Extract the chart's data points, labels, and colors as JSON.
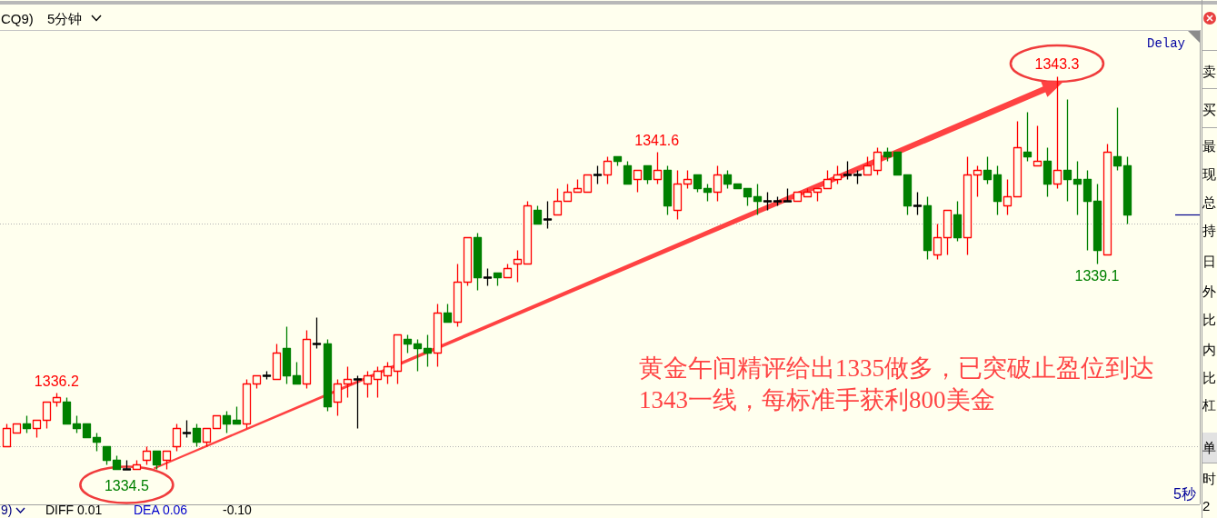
{
  "chart_data": [
    {
      "type": "candlestick",
      "title": "CQ9)",
      "subtitle": "5分钟",
      "categories": [
        null,
        null,
        null,
        null,
        null,
        null,
        null,
        null,
        null,
        null,
        null,
        null,
        null,
        null,
        null,
        null,
        null,
        null,
        null,
        null,
        null,
        null,
        null,
        null,
        null,
        null,
        null,
        null,
        null,
        null,
        null,
        null,
        null,
        null,
        null,
        null,
        null,
        null,
        null,
        null,
        null,
        null,
        null,
        null,
        null,
        null,
        null,
        null,
        null,
        null,
        null,
        null,
        null,
        null,
        null,
        null,
        null,
        null,
        null,
        null,
        null,
        null,
        null,
        null,
        null,
        null,
        null,
        null,
        null,
        null,
        null,
        null,
        null,
        null,
        null,
        null,
        null,
        null,
        null,
        null,
        null,
        null,
        null,
        null,
        null,
        null,
        null,
        null,
        null,
        null,
        null,
        null,
        null,
        null,
        null,
        null,
        null,
        null,
        null,
        null,
        null,
        null,
        null,
        null,
        null,
        null,
        null,
        null,
        null,
        null,
        null,
        null,
        null
      ],
      "ohlc": [
        [
          1335.0,
          1335.5,
          1335.0,
          1335.4
        ],
        [
          1335.3,
          1335.5,
          1335.3,
          1335.5
        ],
        [
          1335.5,
          1335.7,
          1335.3,
          1335.4
        ],
        [
          1335.4,
          1335.6,
          1335.2,
          1335.6
        ],
        [
          1335.6,
          1336.0,
          1335.4,
          1336.0
        ],
        [
          1336.0,
          1336.2,
          1335.9,
          1336.1
        ],
        [
          1336.0,
          1336.1,
          1335.5,
          1335.5
        ],
        [
          1335.5,
          1335.7,
          1335.3,
          1335.4
        ],
        [
          1335.5,
          1335.5,
          1335.2,
          1335.2
        ],
        [
          1335.2,
          1335.3,
          1334.9,
          1335.1
        ],
        [
          1335.0,
          1335.0,
          1334.6,
          1334.7
        ],
        [
          1334.7,
          1334.8,
          1334.5,
          1334.5
        ],
        [
          1334.5,
          1334.7,
          1334.5,
          1334.5
        ],
        [
          1334.5,
          1334.7,
          1334.5,
          1334.6
        ],
        [
          1334.7,
          1335.0,
          1334.6,
          1334.9
        ],
        [
          1334.9,
          1334.9,
          1334.5,
          1334.6
        ],
        [
          1334.7,
          1334.9,
          1334.5,
          1334.9
        ],
        [
          1335.0,
          1335.5,
          1334.9,
          1335.4
        ],
        [
          1335.3,
          1335.6,
          1335.2,
          1335.3
        ],
        [
          1335.4,
          1335.5,
          1335.0,
          1335.1
        ],
        [
          1335.1,
          1335.4,
          1335.0,
          1335.4
        ],
        [
          1335.4,
          1335.7,
          1335.4,
          1335.7
        ],
        [
          1335.7,
          1335.8,
          1335.3,
          1335.5
        ],
        [
          1335.6,
          1335.9,
          1335.5,
          1335.5
        ],
        [
          1335.5,
          1336.5,
          1335.4,
          1336.4
        ],
        [
          1336.4,
          1336.6,
          1336.3,
          1336.6
        ],
        [
          1336.6,
          1336.7,
          1336.5,
          1336.6
        ],
        [
          1336.5,
          1337.3,
          1336.5,
          1337.1
        ],
        [
          1337.2,
          1337.7,
          1336.4,
          1336.6
        ],
        [
          1336.6,
          1336.9,
          1336.4,
          1336.4
        ],
        [
          1336.4,
          1337.6,
          1336.3,
          1337.4
        ],
        [
          1337.3,
          1337.9,
          1337.2,
          1337.3
        ],
        [
          1337.3,
          1337.4,
          1335.8,
          1335.9
        ],
        [
          1336.0,
          1336.5,
          1335.7,
          1336.4
        ],
        [
          1336.4,
          1336.8,
          1336.1,
          1336.5
        ],
        [
          1336.5,
          1336.6,
          1335.4,
          1336.5
        ],
        [
          1336.4,
          1336.7,
          1336.1,
          1336.6
        ],
        [
          1336.5,
          1336.8,
          1336.1,
          1336.7
        ],
        [
          1336.6,
          1336.9,
          1336.4,
          1336.8
        ],
        [
          1336.7,
          1337.5,
          1336.4,
          1337.5
        ],
        [
          1337.4,
          1337.5,
          1337.1,
          1337.3
        ],
        [
          1337.3,
          1337.4,
          1336.7,
          1337.2
        ],
        [
          1337.2,
          1337.5,
          1336.8,
          1337.1
        ],
        [
          1337.1,
          1338.2,
          1336.8,
          1338.0
        ],
        [
          1338.0,
          1338.2,
          1337.8,
          1337.8
        ],
        [
          1337.8,
          1339.1,
          1337.7,
          1338.7
        ],
        [
          1338.7,
          1339.7,
          1338.6,
          1339.7
        ],
        [
          1339.7,
          1339.8,
          1338.5,
          1338.8
        ],
        [
          1338.8,
          1339.0,
          1338.6,
          1338.8
        ],
        [
          1338.9,
          1338.9,
          1338.6,
          1338.8
        ],
        [
          1338.8,
          1339.1,
          1338.8,
          1339.0
        ],
        [
          1339.1,
          1339.4,
          1338.7,
          1339.2
        ],
        [
          1339.1,
          1340.5,
          1339.1,
          1340.4
        ],
        [
          1340.3,
          1340.4,
          1340.0,
          1340.0
        ],
        [
          1340.1,
          1340.5,
          1339.9,
          1340.1
        ],
        [
          1340.2,
          1340.8,
          1340.2,
          1340.5
        ],
        [
          1340.5,
          1340.9,
          1340.5,
          1340.7
        ],
        [
          1340.7,
          1341.0,
          1340.7,
          1340.8
        ],
        [
          1340.7,
          1341.1,
          1340.7,
          1341.1
        ],
        [
          1341.1,
          1341.3,
          1340.9,
          1341.1
        ],
        [
          1341.1,
          1341.5,
          1340.9,
          1341.4
        ],
        [
          1341.5,
          1341.5,
          1341.3,
          1341.4
        ],
        [
          1341.3,
          1341.4,
          1340.9,
          1340.9
        ],
        [
          1341.0,
          1341.2,
          1340.7,
          1341.2
        ],
        [
          1341.3,
          1341.3,
          1340.9,
          1341.0
        ],
        [
          1341.0,
          1341.6,
          1340.9,
          1341.2
        ],
        [
          1341.2,
          1341.3,
          1340.2,
          1340.4
        ],
        [
          1340.3,
          1341.2,
          1340.1,
          1340.9
        ],
        [
          1340.9,
          1341.2,
          1340.8,
          1341.0
        ],
        [
          1341.1,
          1341.1,
          1340.7,
          1340.8
        ],
        [
          1340.8,
          1340.9,
          1340.5,
          1340.7
        ],
        [
          1340.7,
          1341.3,
          1340.5,
          1341.1
        ],
        [
          1341.1,
          1341.2,
          1340.8,
          1340.9
        ],
        [
          1340.9,
          1340.9,
          1340.8,
          1340.8
        ],
        [
          1340.8,
          1340.8,
          1340.4,
          1340.6
        ],
        [
          1340.6,
          1340.9,
          1340.2,
          1340.5
        ],
        [
          1340.5,
          1340.7,
          1340.3,
          1340.5
        ],
        [
          1340.5,
          1340.6,
          1340.4,
          1340.5
        ],
        [
          1340.5,
          1340.8,
          1340.5,
          1340.5
        ],
        [
          1340.5,
          1340.7,
          1340.5,
          1340.7
        ],
        [
          1340.6,
          1340.8,
          1340.6,
          1340.7
        ],
        [
          1340.7,
          1340.8,
          1340.5,
          1340.8
        ],
        [
          1340.8,
          1341.2,
          1340.8,
          1341.0
        ],
        [
          1341.0,
          1341.3,
          1340.9,
          1341.1
        ],
        [
          1341.1,
          1341.4,
          1341.0,
          1341.1
        ],
        [
          1341.1,
          1341.2,
          1340.9,
          1341.1
        ],
        [
          1341.1,
          1341.5,
          1341.1,
          1341.3
        ],
        [
          1341.2,
          1341.7,
          1341.1,
          1341.6
        ],
        [
          1341.6,
          1341.7,
          1341.4,
          1341.5
        ],
        [
          1341.6,
          1341.6,
          1341.1,
          1341.1
        ],
        [
          1341.1,
          1341.1,
          1340.2,
          1340.4
        ],
        [
          1340.4,
          1340.7,
          1340.2,
          1340.4
        ],
        [
          1340.4,
          1340.6,
          1339.2,
          1339.4
        ],
        [
          1339.3,
          1340.0,
          1339.2,
          1339.7
        ],
        [
          1339.7,
          1340.3,
          1339.3,
          1340.3
        ],
        [
          1340.2,
          1340.5,
          1339.6,
          1339.7
        ],
        [
          1339.7,
          1341.5,
          1339.3,
          1341.1
        ],
        [
          1341.1,
          1341.3,
          1340.6,
          1341.2
        ],
        [
          1341.2,
          1341.5,
          1340.9,
          1341.0
        ],
        [
          1341.1,
          1341.3,
          1340.2,
          1340.5
        ],
        [
          1340.4,
          1341.0,
          1340.2,
          1340.6
        ],
        [
          1340.6,
          1342.3,
          1340.6,
          1341.7
        ],
        [
          1341.6,
          1342.5,
          1341.4,
          1341.5
        ],
        [
          1341.3,
          1342.2,
          1341.3,
          1341.4
        ],
        [
          1341.4,
          1341.7,
          1340.6,
          1340.9
        ],
        [
          1340.9,
          1343.3,
          1340.8,
          1341.2
        ],
        [
          1341.2,
          1342.8,
          1340.5,
          1341.0
        ],
        [
          1341.0,
          1341.4,
          1340.2,
          1340.9
        ],
        [
          1341.0,
          1341.2,
          1339.4,
          1340.5
        ],
        [
          1340.5,
          1340.9,
          1339.1,
          1339.4
        ],
        [
          1339.3,
          1341.8,
          1339.3,
          1341.6
        ],
        [
          1341.5,
          1342.6,
          1341.2,
          1341.3
        ],
        [
          1341.3,
          1341.5,
          1340.0,
          1340.2
        ]
      ],
      "colors": [
        "#ff0000",
        "#ff0000",
        "#008000",
        "#ff0000",
        "#ff0000",
        "#ff0000",
        "#008000",
        "#008000",
        "#008000",
        "#008000",
        "#008000",
        "#008000",
        "#000000",
        "#ff0000",
        "#ff0000",
        "#008000",
        "#ff0000",
        "#ff0000",
        "#000000",
        "#008000",
        "#ff0000",
        "#ff0000",
        "#008000",
        "#008000",
        "#ff0000",
        "#ff0000",
        "#000000",
        "#ff0000",
        "#008000",
        "#008000",
        "#ff0000",
        "#000000",
        "#008000",
        "#ff0000",
        "#ff0000",
        "#000000",
        "#ff0000",
        "#ff0000",
        "#ff0000",
        "#ff0000",
        "#008000",
        "#008000",
        "#008000",
        "#ff0000",
        "#008000",
        "#ff0000",
        "#ff0000",
        "#008000",
        "#000000",
        "#008000",
        "#ff0000",
        "#ff0000",
        "#ff0000",
        "#008000",
        "#000000",
        "#ff0000",
        "#ff0000",
        "#ff0000",
        "#ff0000",
        "#000000",
        "#ff0000",
        "#008000",
        "#008000",
        "#ff0000",
        "#008000",
        "#ff0000",
        "#008000",
        "#ff0000",
        "#ff0000",
        "#008000",
        "#008000",
        "#ff0000",
        "#008000",
        "#008000",
        "#008000",
        "#008000",
        "#000000",
        "#000000",
        "#000000",
        "#ff0000",
        "#ff0000",
        "#ff0000",
        "#ff0000",
        "#ff0000",
        "#000000",
        "#000000",
        "#ff0000",
        "#ff0000",
        "#008000",
        "#008000",
        "#008000",
        "#000000",
        "#008000",
        "#ff0000",
        "#ff0000",
        "#008000",
        "#ff0000",
        "#ff0000",
        "#008000",
        "#008000",
        "#ff0000",
        "#ff0000",
        "#008000",
        "#ff0000",
        "#008000",
        "#ff0000",
        "#008000",
        "#008000",
        "#008000",
        "#008000",
        "#ff0000",
        "#008000",
        "#008000"
      ],
      "grid": "y",
      "yticks": [
        {
          "value": 1335,
          "label": null
        },
        {
          "value": 1340,
          "label": null
        }
      ],
      "tick_labels": false,
      "annotations": [
        {
          "text": "1343.3",
          "y": 1343.3
        },
        {
          "text": "1341.6",
          "y": 1341.6
        },
        {
          "text": "1336.2",
          "y": 1336.2
        },
        {
          "text": "1334.5",
          "y": 1334.5
        },
        {
          "text": "1339.1",
          "y": 1339.1
        },
        "黄金午间精评给出1335做多，已突破止盈位到达\n1343一线，每标准手获利800美金",
        "Delay",
        "5秒",
        "9)",
        "DIFF 0.01",
        "DEA 0.06",
        "-0.10"
      ]
    },
    {
      "type": "other",
      "annotations": [
        "卖",
        "买",
        "最",
        "现",
        "总",
        "持",
        "日",
        "外",
        "比",
        "内",
        "比",
        "杠",
        "单",
        "时",
        "2"
      ]
    }
  ]
}
